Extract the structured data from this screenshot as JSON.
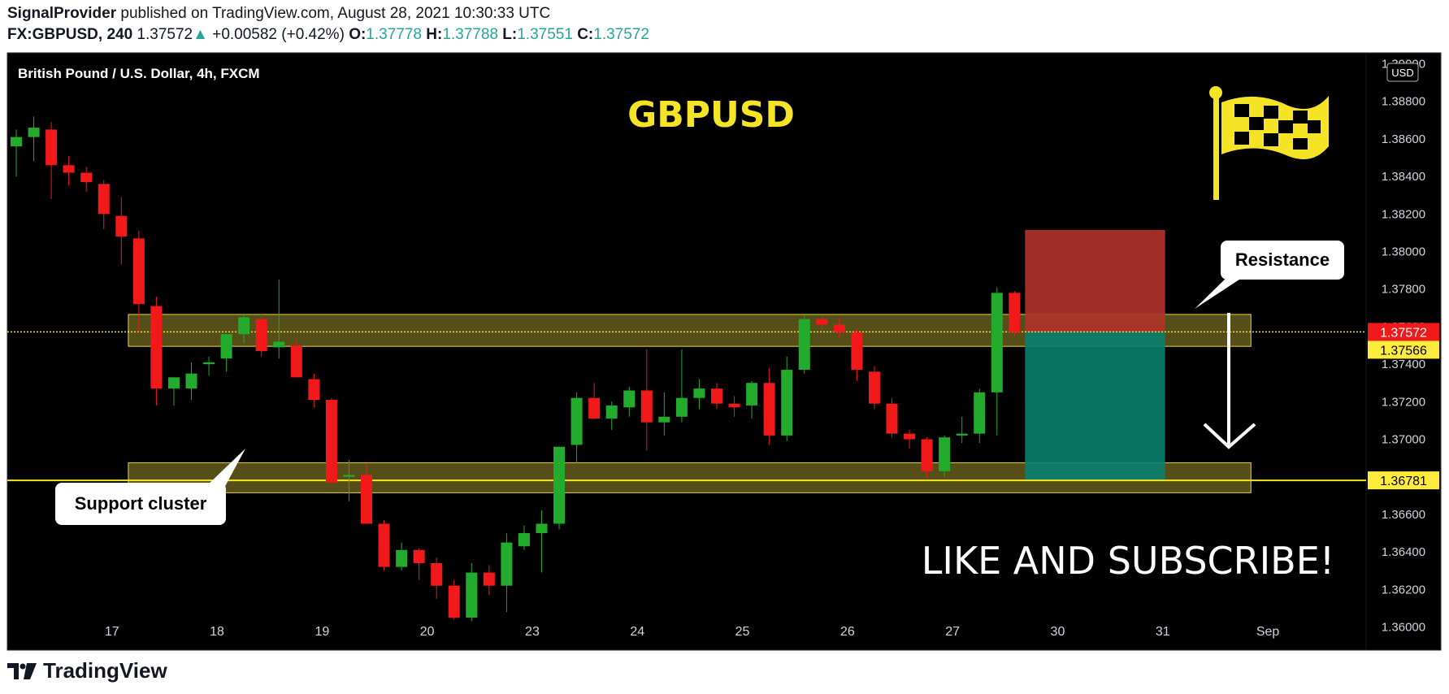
{
  "header": {
    "author": "SignalProvider",
    "published_text": "published on TradingView.com, August 28, 2021 10:30:33 UTC",
    "symbol": "FX:GBPUSD, 240",
    "last_price": "1.37572",
    "change_arrow": "▲",
    "change": "+0.00582 (+0.42%)",
    "o_label": "O:",
    "o_value": "1.37778",
    "h_label": "H:",
    "h_value": "1.37788",
    "l_label": "L:",
    "l_value": "1.37551",
    "c_label": "C:",
    "c_value": "1.37572"
  },
  "footer": {
    "brand": "TradingView",
    "logo_icon": "tradingview-logo-icon"
  },
  "colors": {
    "up": "#22ab2c",
    "down": "#f2191b",
    "zone": "#5e561c",
    "zone_border": "#e5d43c",
    "label_yellow": "#ffeb3b",
    "stop": "#b2322a",
    "target": "#08806e"
  },
  "chart_data": {
    "type": "candlestick",
    "title": "GBPUSD",
    "instrument_label": "British Pound / U.S. Dollar, 4h, FXCM",
    "currency_label": "USD",
    "ylim": [
      1.3592,
      1.3905
    ],
    "y_ticks": [
      "1.36000",
      "1.36200",
      "1.36400",
      "1.36600",
      "1.36800",
      "1.37000",
      "1.37200",
      "1.37400",
      "1.37600",
      "1.37800",
      "1.38000",
      "1.38200",
      "1.38400",
      "1.38600",
      "1.38800",
      "1.39000"
    ],
    "x_ticks": [
      {
        "label": "17",
        "index": 5
      },
      {
        "label": "18",
        "index": 11
      },
      {
        "label": "19",
        "index": 17
      },
      {
        "label": "20",
        "index": 23
      },
      {
        "label": "23",
        "index": 29
      },
      {
        "label": "24",
        "index": 35
      },
      {
        "label": "25",
        "index": 41
      },
      {
        "label": "26",
        "index": 47
      },
      {
        "label": "27",
        "index": 53
      },
      {
        "label": "30",
        "index": 59
      },
      {
        "label": "31",
        "index": 65
      },
      {
        "label": "Sep",
        "index": 71
      }
    ],
    "candles": [
      [
        1.3856,
        1.3865,
        1.384,
        1.3861
      ],
      [
        1.3861,
        1.3872,
        1.3848,
        1.3866
      ],
      [
        1.3865,
        1.3869,
        1.3828,
        1.3846
      ],
      [
        1.3846,
        1.3851,
        1.3835,
        1.3842
      ],
      [
        1.3842,
        1.3845,
        1.3832,
        1.3837
      ],
      [
        1.3836,
        1.3838,
        1.3812,
        1.382
      ],
      [
        1.3819,
        1.3829,
        1.3793,
        1.3808
      ],
      [
        1.3807,
        1.3811,
        1.3757,
        1.3772
      ],
      [
        1.3771,
        1.3776,
        1.3718,
        1.3727
      ],
      [
        1.3727,
        1.3731,
        1.3718,
        1.3733
      ],
      [
        1.3727,
        1.3741,
        1.3721,
        1.3735
      ],
      [
        1.374,
        1.3744,
        1.3734,
        1.3741
      ],
      [
        1.3743,
        1.3756,
        1.3736,
        1.3756
      ],
      [
        1.3756,
        1.3767,
        1.3751,
        1.3765
      ],
      [
        1.3764,
        1.3767,
        1.3744,
        1.3747
      ],
      [
        1.3749,
        1.3785,
        1.3743,
        1.3752
      ],
      [
        1.375,
        1.3753,
        1.3733,
        1.3733
      ],
      [
        1.3732,
        1.3735,
        1.3717,
        1.3721
      ],
      [
        1.3721,
        1.3722,
        1.3676,
        1.3677
      ],
      [
        1.368,
        1.3689,
        1.3667,
        1.3681
      ],
      [
        1.3681,
        1.3687,
        1.3655,
        1.3655
      ],
      [
        1.3655,
        1.3657,
        1.363,
        1.3632
      ],
      [
        1.3632,
        1.3645,
        1.363,
        1.3641
      ],
      [
        1.3641,
        1.3642,
        1.3625,
        1.3634
      ],
      [
        1.3634,
        1.3637,
        1.3615,
        1.3622
      ],
      [
        1.3622,
        1.3625,
        1.3604,
        1.3605
      ],
      [
        1.3605,
        1.3634,
        1.3603,
        1.3629
      ],
      [
        1.3629,
        1.3633,
        1.3617,
        1.3622
      ],
      [
        1.3622,
        1.365,
        1.3608,
        1.3645
      ],
      [
        1.3643,
        1.3654,
        1.3641,
        1.365
      ],
      [
        1.365,
        1.3662,
        1.3629,
        1.3655
      ],
      [
        1.3655,
        1.3695,
        1.3652,
        1.3696
      ],
      [
        1.3697,
        1.3725,
        1.3687,
        1.3722
      ],
      [
        1.3722,
        1.373,
        1.3711,
        1.3711
      ],
      [
        1.3711,
        1.372,
        1.3705,
        1.3718
      ],
      [
        1.3717,
        1.3728,
        1.3712,
        1.3726
      ],
      [
        1.3726,
        1.3748,
        1.3694,
        1.3709
      ],
      [
        1.3709,
        1.3725,
        1.3702,
        1.3712
      ],
      [
        1.3712,
        1.3748,
        1.3709,
        1.3722
      ],
      [
        1.3722,
        1.3732,
        1.3716,
        1.3727
      ],
      [
        1.3727,
        1.373,
        1.3716,
        1.3719
      ],
      [
        1.3719,
        1.3723,
        1.3712,
        1.3717
      ],
      [
        1.3718,
        1.3731,
        1.3711,
        1.373
      ],
      [
        1.373,
        1.3738,
        1.3697,
        1.3702
      ],
      [
        1.3702,
        1.3744,
        1.3699,
        1.3737
      ],
      [
        1.3737,
        1.3766,
        1.3735,
        1.3764
      ],
      [
        1.3764,
        1.3766,
        1.3758,
        1.3761
      ],
      [
        1.3761,
        1.3765,
        1.3754,
        1.3757
      ],
      [
        1.3757,
        1.3759,
        1.3731,
        1.3737
      ],
      [
        1.3736,
        1.3739,
        1.3716,
        1.3719
      ],
      [
        1.3719,
        1.3722,
        1.3701,
        1.3703
      ],
      [
        1.3703,
        1.3705,
        1.3695,
        1.37
      ],
      [
        1.37,
        1.3701,
        1.3679,
        1.3683
      ],
      [
        1.3683,
        1.3702,
        1.368,
        1.3701
      ],
      [
        1.3702,
        1.3712,
        1.3698,
        1.3703
      ],
      [
        1.3703,
        1.3727,
        1.3698,
        1.3725
      ],
      [
        1.3725,
        1.3781,
        1.3702,
        1.3778
      ],
      [
        1.3778,
        1.3779,
        1.3755,
        1.3757
      ]
    ],
    "zones": [
      {
        "name": "resistance-zone",
        "from_index": 6.4,
        "to_index": 70.5,
        "low": 1.37495,
        "high": 1.37665
      },
      {
        "name": "support-zone",
        "from_index": 6.4,
        "to_index": 70.5,
        "low": 1.36715,
        "high": 1.36875
      }
    ],
    "hlines": [
      {
        "name": "current-price-line",
        "value": 1.37572,
        "style": "dotted"
      },
      {
        "name": "support-line",
        "value": 1.36781,
        "style": "solid"
      }
    ],
    "position": {
      "from_index": 57.6,
      "to_index": 65.6,
      "entry": 1.37572,
      "stop": 1.38115,
      "target": 1.36781
    },
    "price_labels": [
      {
        "value": "1.37572",
        "price": 1.37572,
        "style": "red"
      },
      {
        "value": "1.37566",
        "price": 1.37566,
        "style": "yellow"
      },
      {
        "value": "1.36781",
        "price": 1.36781,
        "style": "yellow"
      }
    ],
    "callouts": [
      {
        "name": "resistance-callout",
        "text": "Resistance"
      },
      {
        "name": "support-callout",
        "text": "Support cluster"
      }
    ],
    "banner": "LIKE AND SUBSCRIBE!",
    "flag_icon": "checkered-flag-icon",
    "arrow_icon": "down-arrow-icon"
  }
}
